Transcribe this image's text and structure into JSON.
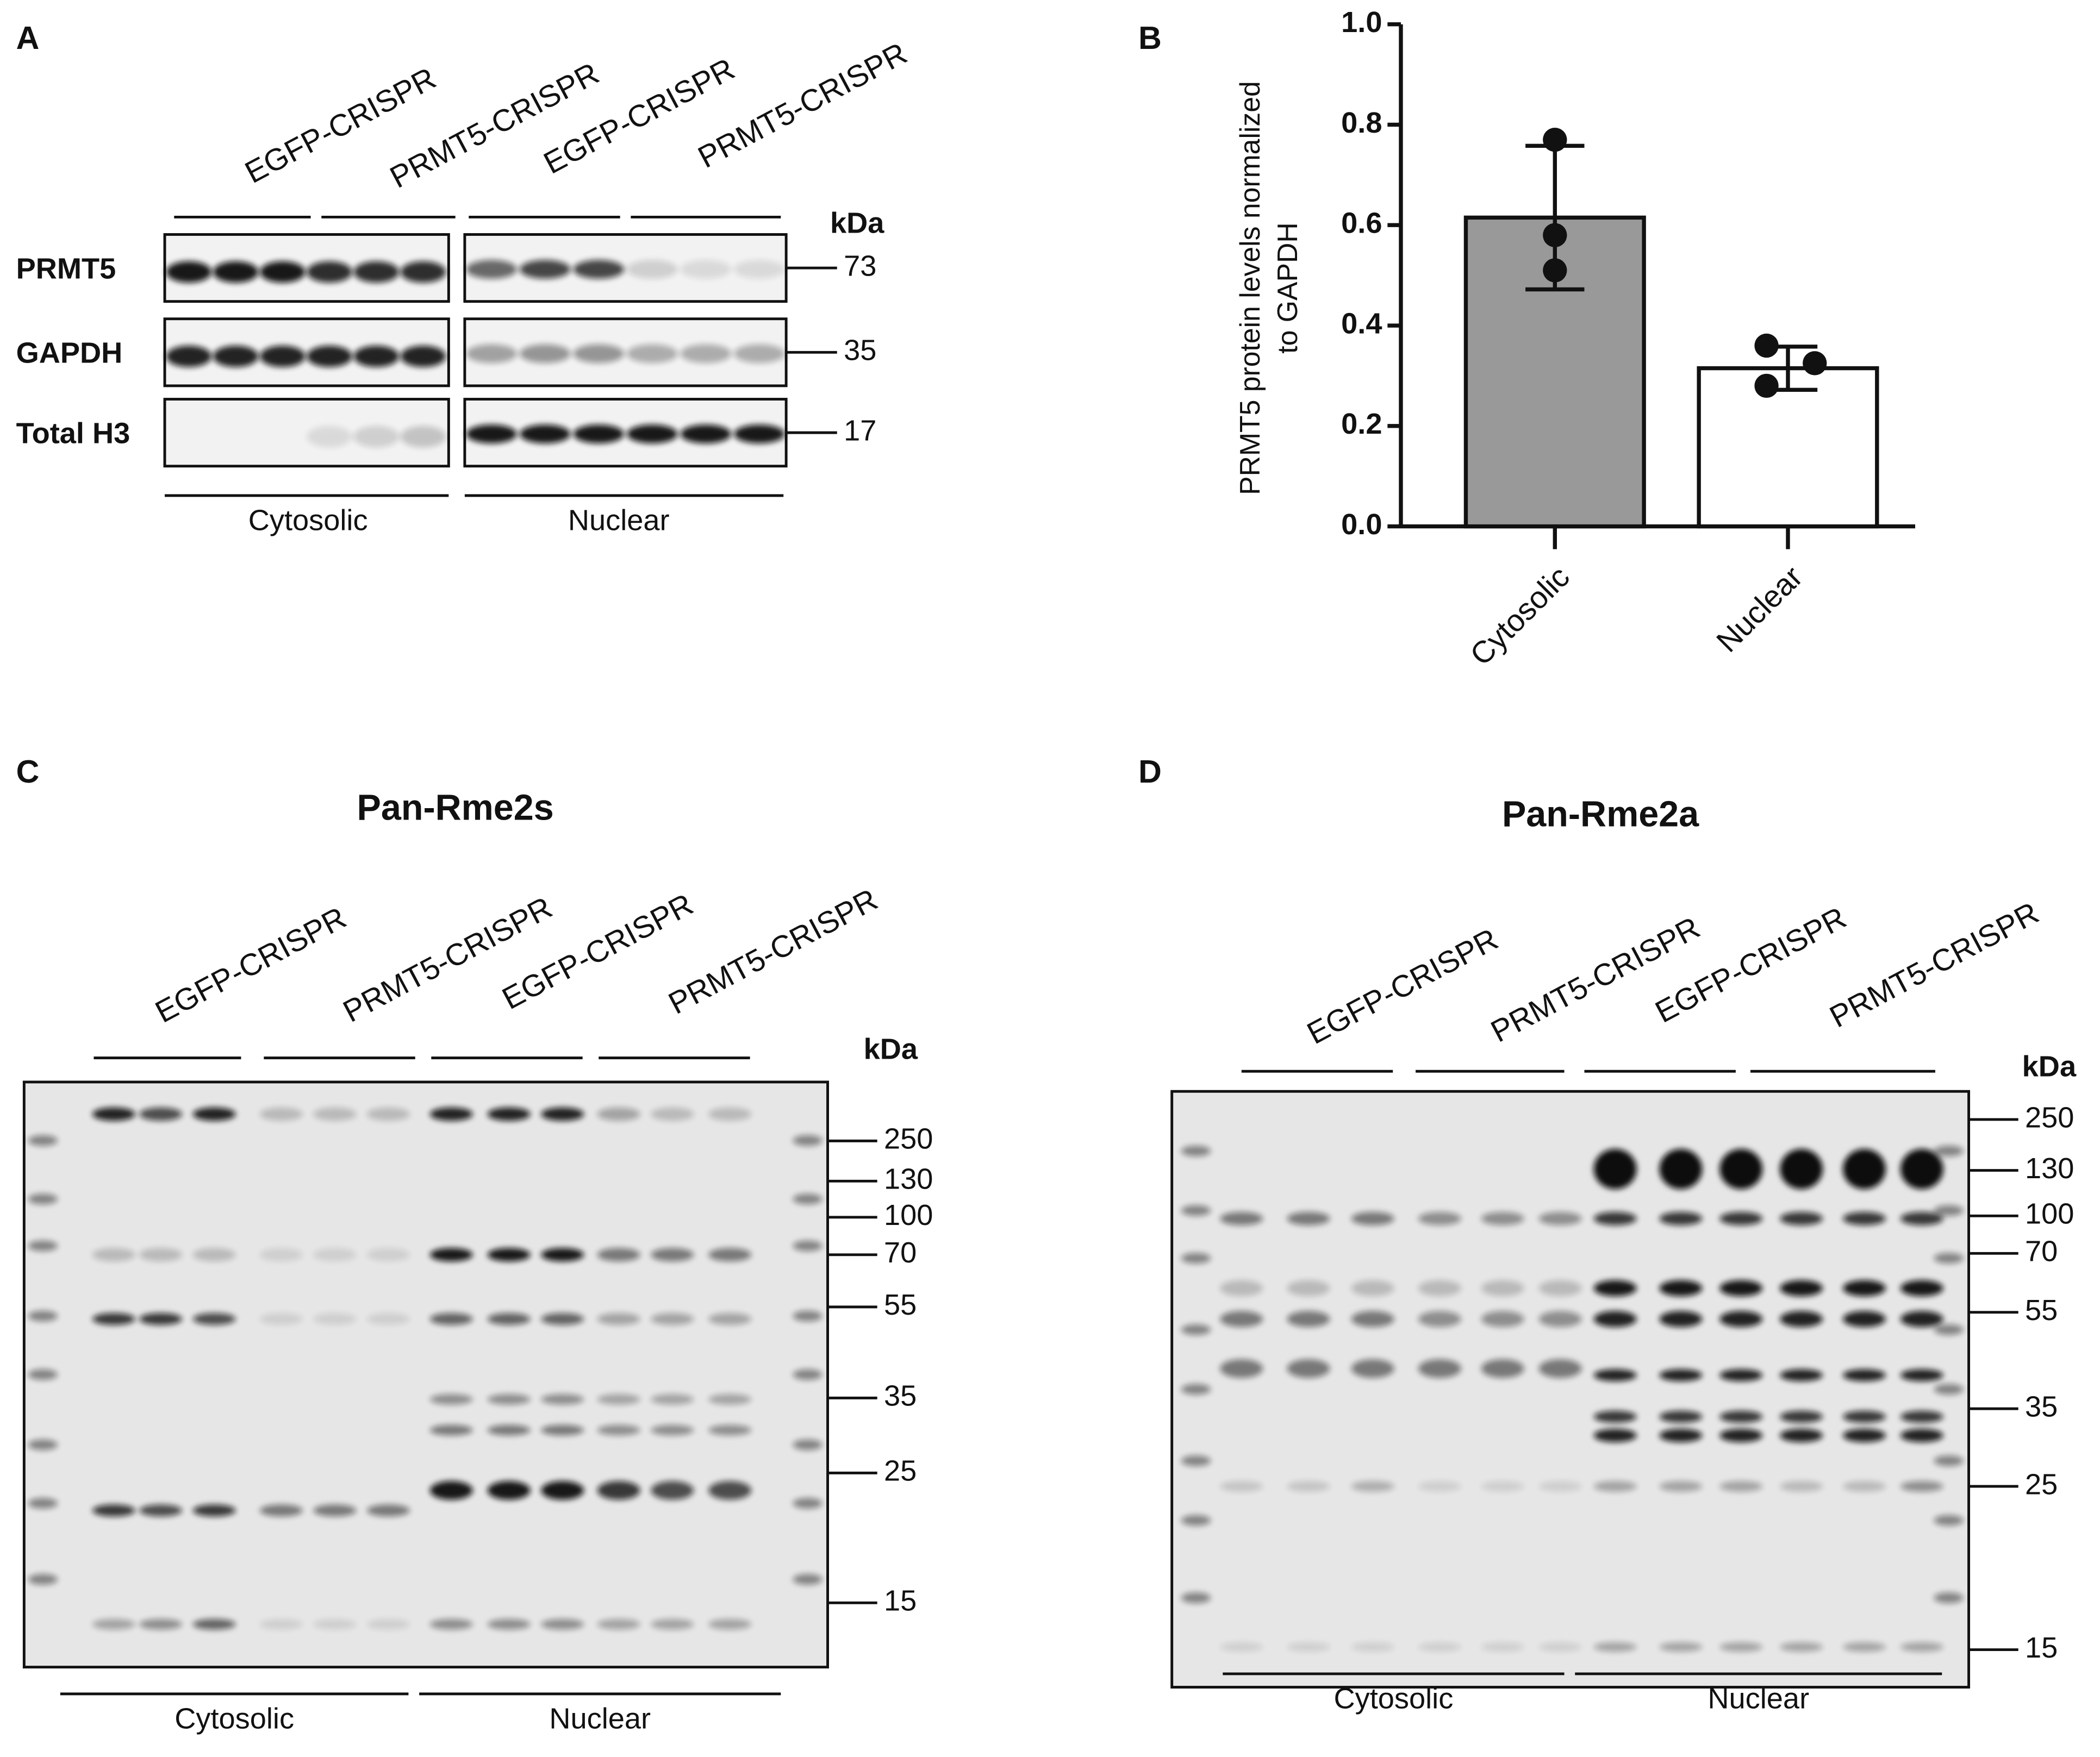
{
  "panel_a": {
    "label": "A",
    "groups": [
      "EGFP-CRISPR",
      "PRMT5-CRISPR",
      "EGFP-CRISPR",
      "PRMT5-CRISPR"
    ],
    "unit": "kDa",
    "rows": [
      {
        "name": "PRMT5",
        "kda": 73
      },
      {
        "name": "GAPDH",
        "kda": 35
      },
      {
        "name": "Total H3",
        "kda": 17
      }
    ],
    "fractions": [
      "Cytosolic",
      "Nuclear"
    ]
  },
  "chart_data": {
    "type": "bar",
    "panel_label": "B",
    "ylabel": [
      "PRMT5 protein levels normalized",
      "to GAPDH"
    ],
    "categories": [
      "Cytosolic",
      "Nuclear"
    ],
    "values": [
      0.615,
      0.315
    ],
    "errors": [
      0.143,
      0.043
    ],
    "points": [
      [
        0.77,
        0.58,
        0.51
      ],
      [
        0.36,
        0.325,
        0.28
      ]
    ],
    "colors": [
      "#999999",
      "#ffffff"
    ],
    "ylim": [
      0,
      1
    ],
    "yticks": [
      {
        "value": 0,
        "label": "0.0"
      },
      0.2,
      0.4,
      0.6,
      0.8,
      {
        "value": 1,
        "label": "1.0"
      }
    ]
  },
  "panel_c": {
    "label": "C",
    "title": "Pan-Rme2s",
    "groups": [
      "EGFP-CRISPR",
      "PRMT5-CRISPR",
      "EGFP-CRISPR",
      "PRMT5-CRISPR"
    ],
    "unit": "kDa",
    "markers": [
      250,
      130,
      100,
      70,
      55,
      35,
      25,
      15
    ],
    "fractions": [
      "Cytosolic",
      "Nuclear"
    ]
  },
  "panel_d": {
    "label": "D",
    "title": "Pan-Rme2a",
    "groups": [
      "EGFP-CRISPR",
      "PRMT5-CRISPR",
      "EGFP-CRISPR",
      "PRMT5-CRISPR"
    ],
    "unit": "kDa",
    "markers": [
      250,
      130,
      100,
      70,
      55,
      35,
      25,
      15
    ],
    "fractions": [
      "Cytosolic",
      "Nuclear"
    ]
  }
}
